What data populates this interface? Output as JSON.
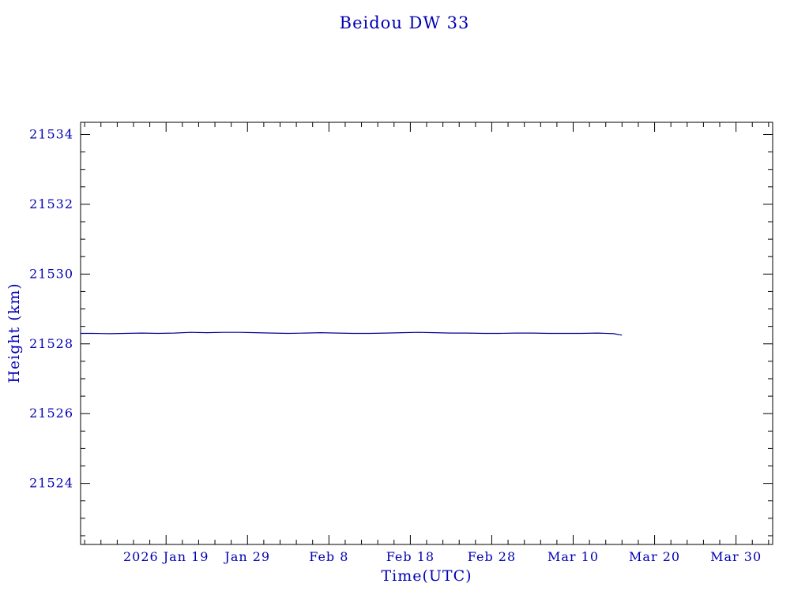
{
  "chart_data": {
    "type": "line",
    "title": "Beidou DW 33",
    "xlabel": "Time(UTC)",
    "ylabel": "Height (km)",
    "x_unit": "day of year 2026",
    "xlim": [
      8.5,
      93.5
    ],
    "ylim": [
      21522.25,
      21534.35
    ],
    "grid": false,
    "legend": "none",
    "x_major_ticks": [
      {
        "value": 19,
        "label": "2026 Jan 19"
      },
      {
        "value": 29,
        "label": "Jan 29"
      },
      {
        "value": 39,
        "label": "Feb 8"
      },
      {
        "value": 49,
        "label": "Feb 18"
      },
      {
        "value": 59,
        "label": "Feb 28"
      },
      {
        "value": 69,
        "label": "Mar 10"
      },
      {
        "value": 79,
        "label": "Mar 20"
      },
      {
        "value": 89,
        "label": "Mar 30"
      }
    ],
    "x_minor_step": 2,
    "y_major_ticks": [
      {
        "value": 21524,
        "label": "21524"
      },
      {
        "value": 21526,
        "label": "21526"
      },
      {
        "value": 21528,
        "label": "21528"
      },
      {
        "value": 21530,
        "label": "21530"
      },
      {
        "value": 21532,
        "label": "21532"
      },
      {
        "value": 21534,
        "label": "21534"
      }
    ],
    "y_minor_step": 0.5,
    "series": [
      {
        "name": "satellite-height",
        "x": [
          8.5,
          10,
          12,
          14,
          16,
          18,
          20,
          22,
          24,
          26,
          28,
          30,
          32,
          34,
          36,
          38,
          40,
          42,
          44,
          46,
          48,
          50,
          52,
          54,
          56,
          58,
          60,
          62,
          64,
          66,
          68,
          70,
          72,
          74,
          75
        ],
        "y": [
          21528.3,
          21528.3,
          21528.29,
          21528.3,
          21528.31,
          21528.3,
          21528.31,
          21528.33,
          21528.32,
          21528.33,
          21528.33,
          21528.32,
          21528.31,
          21528.3,
          21528.31,
          21528.32,
          21528.31,
          21528.3,
          21528.3,
          21528.31,
          21528.32,
          21528.33,
          21528.32,
          21528.31,
          21528.31,
          21528.3,
          21528.3,
          21528.31,
          21528.31,
          21528.3,
          21528.3,
          21528.3,
          21528.31,
          21528.29,
          21528.25
        ]
      }
    ],
    "colors": {
      "text": "#0000b4",
      "line": "#000090",
      "frame": "#000000",
      "background": "#ffffff"
    }
  }
}
